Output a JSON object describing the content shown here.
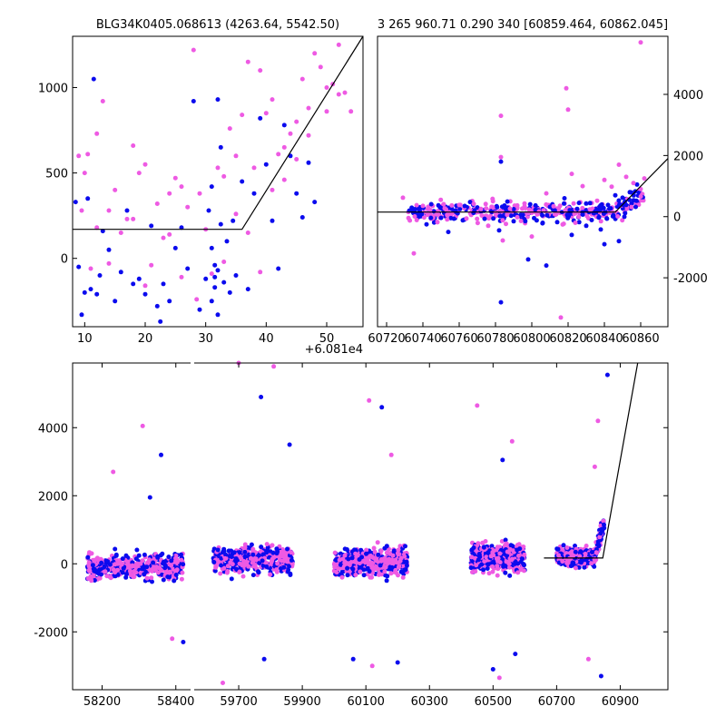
{
  "figure": {
    "point_colors": {
      "blue": "#0b0bee",
      "pink": "#ee5ae3"
    },
    "line_color": "#000000"
  },
  "chart_data": [
    {
      "type": "scatter",
      "title": "BLG34K0405.068613 (4263.64, 5542.50)",
      "xlabel": "",
      "ylabel": "",
      "xlim": [
        8,
        56
      ],
      "ylim": [
        -400,
        1300
      ],
      "x_offset_label": "+6.081e4",
      "xticks": [
        10,
        20,
        30,
        40,
        50
      ],
      "yticks": [
        0,
        500,
        1000
      ],
      "grid": false,
      "fit_line": {
        "x": [
          8,
          36,
          56
        ],
        "y": [
          170,
          170,
          1300
        ]
      },
      "series": [
        {
          "color": "#0b0bee",
          "points": [
            [
              8.5,
              330
            ],
            [
              9,
              -50
            ],
            [
              9.5,
              -330
            ],
            [
              10,
              -200
            ],
            [
              10.5,
              350
            ],
            [
              11,
              -180
            ],
            [
              11.5,
              1050
            ],
            [
              12,
              -210
            ],
            [
              12.5,
              -100
            ],
            [
              13,
              160
            ],
            [
              14,
              50
            ],
            [
              15,
              -250
            ],
            [
              16,
              -80
            ],
            [
              17,
              280
            ],
            [
              18,
              -150
            ],
            [
              19,
              -120
            ],
            [
              20,
              -210
            ],
            [
              21,
              190
            ],
            [
              22,
              -280
            ],
            [
              22.5,
              -370
            ],
            [
              23,
              -150
            ],
            [
              24,
              -250
            ],
            [
              25,
              60
            ],
            [
              26,
              180
            ],
            [
              27,
              -60
            ],
            [
              28,
              920
            ],
            [
              29,
              -300
            ],
            [
              30,
              -120
            ],
            [
              30.5,
              280
            ],
            [
              31,
              420
            ],
            [
              31.5,
              -40
            ],
            [
              32,
              930
            ],
            [
              32.5,
              650
            ],
            [
              33,
              -140
            ],
            [
              33.5,
              100
            ],
            [
              34,
              -200
            ],
            [
              34.5,
              220
            ],
            [
              35,
              -100
            ],
            [
              36,
              450
            ],
            [
              37,
              -180
            ],
            [
              38,
              380
            ],
            [
              39,
              820
            ],
            [
              40,
              550
            ],
            [
              41,
              220
            ],
            [
              42,
              -60
            ],
            [
              43,
              780
            ],
            [
              44,
              600
            ],
            [
              45,
              380
            ],
            [
              46,
              240
            ],
            [
              47,
              560
            ],
            [
              48,
              330
            ],
            [
              31,
              60
            ],
            [
              31.5,
              -170
            ],
            [
              32,
              -70
            ],
            [
              32.5,
              200
            ],
            [
              31,
              -250
            ],
            [
              31.5,
              -110
            ],
            [
              32,
              -330
            ]
          ]
        },
        {
          "color": "#ee5ae3",
          "points": [
            [
              9,
              600
            ],
            [
              9.5,
              280
            ],
            [
              10,
              500
            ],
            [
              10.5,
              610
            ],
            [
              11,
              -60
            ],
            [
              12,
              730
            ],
            [
              13,
              920
            ],
            [
              14,
              280
            ],
            [
              15,
              400
            ],
            [
              16,
              150
            ],
            [
              17,
              230
            ],
            [
              18,
              660
            ],
            [
              19,
              500
            ],
            [
              20,
              550
            ],
            [
              21,
              -40
            ],
            [
              22,
              320
            ],
            [
              23,
              120
            ],
            [
              24,
              380
            ],
            [
              25,
              470
            ],
            [
              26,
              -110
            ],
            [
              27,
              300
            ],
            [
              28,
              1220
            ],
            [
              28.5,
              -240
            ],
            [
              29,
              380
            ],
            [
              30,
              170
            ],
            [
              31,
              -90
            ],
            [
              32,
              530
            ],
            [
              33,
              480
            ],
            [
              34,
              760
            ],
            [
              35,
              600
            ],
            [
              36,
              840
            ],
            [
              37,
              1150
            ],
            [
              38,
              530
            ],
            [
              39,
              1100
            ],
            [
              40,
              850
            ],
            [
              41,
              930
            ],
            [
              42,
              610
            ],
            [
              43,
              460
            ],
            [
              44,
              730
            ],
            [
              45,
              800
            ],
            [
              46,
              1050
            ],
            [
              47,
              880
            ],
            [
              48,
              1200
            ],
            [
              49,
              1120
            ],
            [
              50,
              1000
            ],
            [
              51,
              1020
            ],
            [
              52,
              1250
            ],
            [
              53,
              970
            ],
            [
              54,
              860
            ],
            [
              12,
              180
            ],
            [
              14,
              -30
            ],
            [
              18,
              230
            ],
            [
              20,
              -160
            ],
            [
              24,
              140
            ],
            [
              26,
              420
            ],
            [
              33,
              -20
            ],
            [
              35,
              260
            ],
            [
              37,
              150
            ],
            [
              39,
              -80
            ],
            [
              41,
              400
            ],
            [
              43,
              650
            ],
            [
              45,
              580
            ],
            [
              47,
              720
            ],
            [
              50,
              860
            ],
            [
              52,
              960
            ]
          ]
        }
      ]
    },
    {
      "type": "scatter",
      "title": "3 265 960.71 0.290 340 [60859.464, 60862.045]",
      "xlabel": "",
      "ylabel": "",
      "xlim": [
        60715,
        60875
      ],
      "ylim": [
        -3600,
        5900
      ],
      "xticks": [
        60720,
        60740,
        60760,
        60780,
        60800,
        60820,
        60840,
        60860
      ],
      "yticks": [
        -2000,
        0,
        2000,
        4000
      ],
      "y_axis_side": "right",
      "grid": false,
      "fit_line": {
        "x": [
          60715,
          60846,
          60875
        ],
        "y": [
          150,
          150,
          1900
        ]
      },
      "series": [
        {
          "color": "#0b0bee",
          "points": [
            [
              60738,
              120
            ],
            [
              60742,
              -250
            ],
            [
              60746,
              180
            ],
            [
              60750,
              -40
            ],
            [
              60754,
              -500
            ],
            [
              60758,
              200
            ],
            [
              60762,
              -120
            ],
            [
              60766,
              480
            ],
            [
              60770,
              300
            ],
            [
              60774,
              -70
            ],
            [
              60778,
              150
            ],
            [
              60782,
              -450
            ],
            [
              60783,
              1800
            ],
            [
              60783,
              -2800
            ],
            [
              60786,
              210
            ],
            [
              60790,
              -150
            ],
            [
              60794,
              60
            ],
            [
              60798,
              -1400
            ],
            [
              60802,
              220
            ],
            [
              60806,
              -200
            ],
            [
              60808,
              -1600
            ],
            [
              60810,
              320
            ],
            [
              60814,
              -180
            ],
            [
              60818,
              600
            ],
            [
              60822,
              -600
            ],
            [
              60826,
              450
            ],
            [
              60830,
              -300
            ],
            [
              60834,
              120
            ],
            [
              60838,
              -420
            ],
            [
              60840,
              -900
            ],
            [
              60842,
              380
            ],
            [
              60846,
              700
            ],
            [
              60848,
              -800
            ],
            [
              60850,
              620
            ],
            [
              60854,
              800
            ],
            [
              60858,
              1050
            ]
          ]
        },
        {
          "color": "#ee5ae3",
          "points": [
            [
              60729,
              620
            ],
            [
              60735,
              -1200
            ],
            [
              60740,
              350
            ],
            [
              60744,
              220
            ],
            [
              60748,
              -180
            ],
            [
              60752,
              270
            ],
            [
              60756,
              100
            ],
            [
              60760,
              380
            ],
            [
              60764,
              -60
            ],
            [
              60768,
              420
            ],
            [
              60772,
              250
            ],
            [
              60776,
              -300
            ],
            [
              60780,
              130
            ],
            [
              60783,
              3300
            ],
            [
              60783,
              1950
            ],
            [
              60784,
              -780
            ],
            [
              60788,
              260
            ],
            [
              60792,
              -20
            ],
            [
              60796,
              430
            ],
            [
              60800,
              -650
            ],
            [
              60804,
              170
            ],
            [
              60808,
              760
            ],
            [
              60812,
              340
            ],
            [
              60816,
              -3300
            ],
            [
              60819,
              4200
            ],
            [
              60820,
              3500
            ],
            [
              60822,
              1400
            ],
            [
              60824,
              -200
            ],
            [
              60828,
              1000
            ],
            [
              60832,
              240
            ],
            [
              60836,
              520
            ],
            [
              60840,
              1200
            ],
            [
              60844,
              980
            ],
            [
              60848,
              1700
            ],
            [
              60852,
              1300
            ],
            [
              60856,
              1100
            ],
            [
              60860,
              900
            ],
            [
              60862,
              1250
            ],
            [
              60860,
              5700
            ]
          ]
        }
      ]
    },
    {
      "type": "scatter",
      "title": "",
      "xlabel": "",
      "ylabel": "",
      "xlim": [
        58120,
        61050
      ],
      "ylim": [
        -3700,
        5900
      ],
      "broken_x_axis": {
        "left_range": [
          58120,
          58440
        ],
        "right_range": [
          59560,
          61050
        ]
      },
      "xticks": [
        58200,
        58400,
        59700,
        59900,
        60100,
        60300,
        60500,
        60700,
        60900
      ],
      "yticks": [
        -2000,
        0,
        2000,
        4000
      ],
      "grid": false,
      "fit_line": {
        "x": [
          60660,
          60845,
          60955
        ],
        "y": [
          170,
          170,
          6000
        ]
      },
      "clusters": [
        {
          "x_range": [
            58160,
            58420
          ],
          "y_center": -100,
          "spread": 650,
          "outliers": [
            [
              58310,
              4050
            ],
            [
              58360,
              3200
            ],
            [
              58230,
              2700
            ],
            [
              58330,
              1950
            ],
            [
              58390,
              -2200
            ],
            [
              58420,
              -2300
            ]
          ]
        },
        {
          "x_range": [
            59620,
            59870
          ],
          "y_center": 120,
          "spread": 700,
          "outliers": [
            [
              59700,
              5900
            ],
            [
              59770,
              4900
            ],
            [
              59810,
              5800
            ],
            [
              59860,
              3500
            ],
            [
              59650,
              -3500
            ],
            [
              59780,
              -2800
            ]
          ]
        },
        {
          "x_range": [
            60000,
            60230
          ],
          "y_center": 60,
          "spread": 700,
          "outliers": [
            [
              60110,
              4800
            ],
            [
              60150,
              4600
            ],
            [
              60180,
              3200
            ],
            [
              60060,
              -2800
            ],
            [
              60120,
              -3000
            ],
            [
              60200,
              -2900
            ]
          ]
        },
        {
          "x_range": [
            60430,
            60600
          ],
          "y_center": 180,
          "spread": 700,
          "outliers": [
            [
              60450,
              4650
            ],
            [
              60530,
              3050
            ],
            [
              60560,
              3600
            ],
            [
              60500,
              -3100
            ],
            [
              60520,
              -3350
            ],
            [
              60570,
              -2650
            ]
          ]
        },
        {
          "x_range": [
            60700,
            60850
          ],
          "y_center": 200,
          "spread": 450,
          "outliers": [
            [
              60830,
              4200
            ],
            [
              60860,
              5550
            ],
            [
              60800,
              -2800
            ],
            [
              60840,
              -3300
            ],
            [
              60820,
              2850
            ]
          ]
        }
      ]
    }
  ]
}
